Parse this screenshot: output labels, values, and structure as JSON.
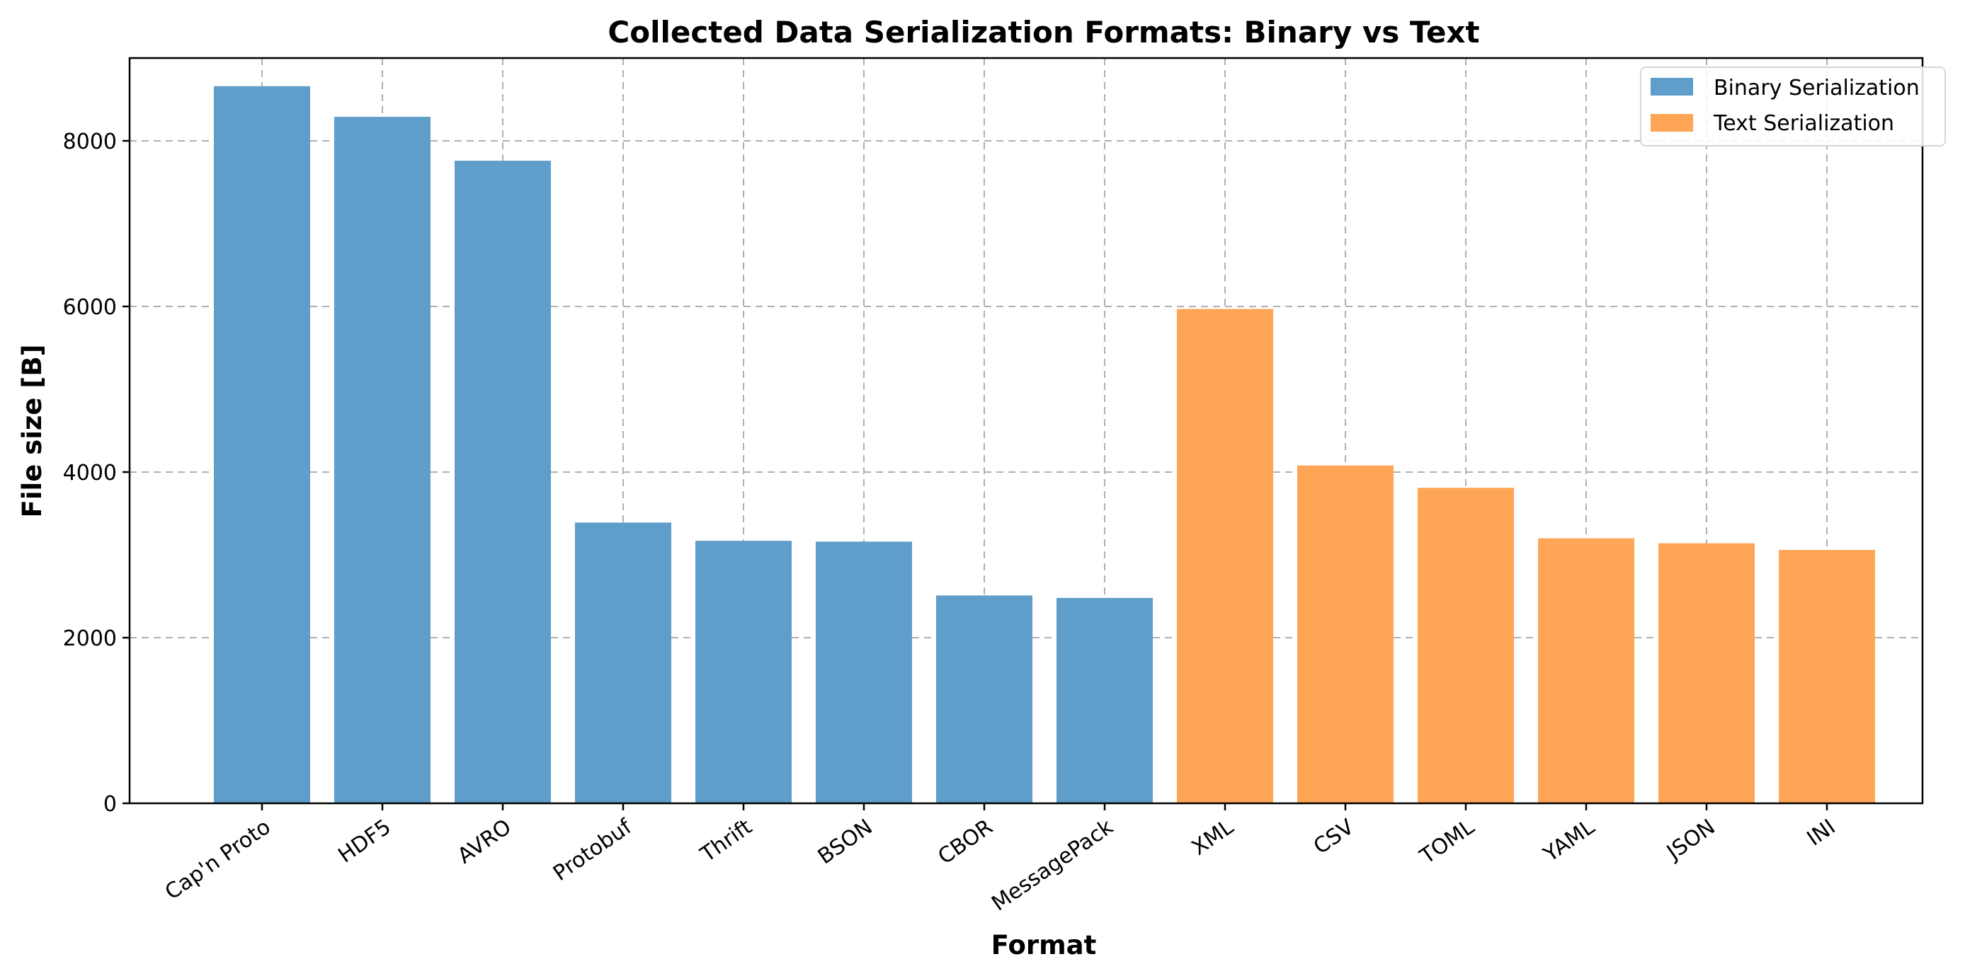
{
  "chart_data": {
    "type": "bar",
    "title": "Collected Data Serialization Formats: Binary vs Text",
    "xlabel": "Format",
    "ylabel": "File size [B]",
    "ylim": [
      0,
      9000
    ],
    "yticks": [
      0,
      2000,
      4000,
      6000,
      8000
    ],
    "grid": true,
    "legend_position": "top-right",
    "categories": [
      "Cap'n Proto",
      "HDF5",
      "AVRO",
      "Protobuf",
      "Thrift",
      "BSON",
      "CBOR",
      "MessagePack",
      "XML",
      "CSV",
      "TOML",
      "YAML",
      "JSON",
      "INI"
    ],
    "values": [
      8660,
      8290,
      7760,
      3390,
      3170,
      3160,
      2510,
      2480,
      5970,
      4080,
      3810,
      3200,
      3140,
      3060
    ],
    "groups": [
      "binary",
      "binary",
      "binary",
      "binary",
      "binary",
      "binary",
      "binary",
      "binary",
      "text",
      "text",
      "text",
      "text",
      "text",
      "text"
    ],
    "series": [
      {
        "key": "binary",
        "name": "Binary Serialization",
        "color": "#5f9dcb"
      },
      {
        "key": "text",
        "name": "Text Serialization",
        "color": "#ffa556"
      }
    ]
  }
}
